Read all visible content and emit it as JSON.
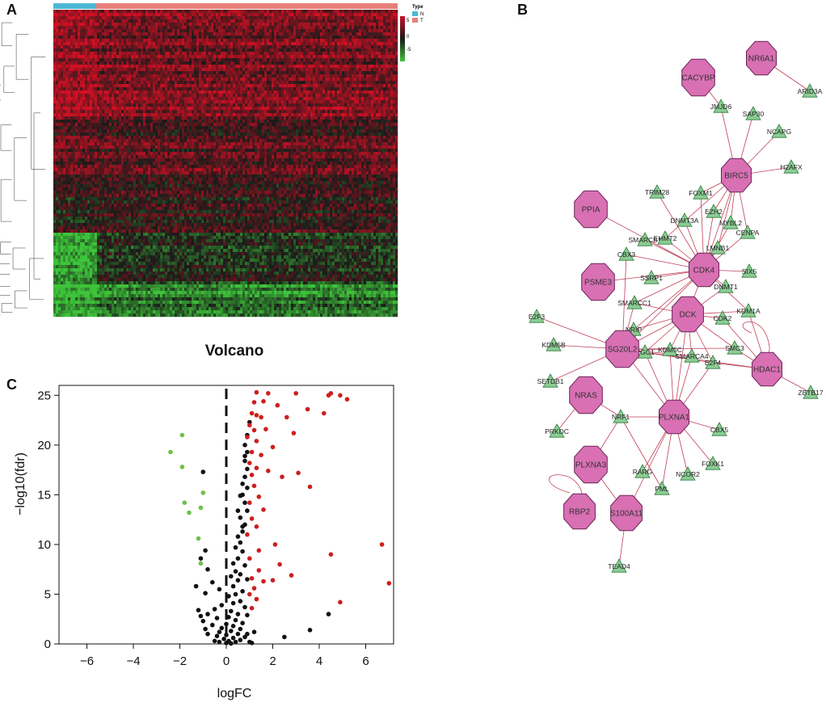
{
  "panels": {
    "a": "A",
    "b": "B",
    "c": "C"
  },
  "heatmap": {
    "legend_title": "Type",
    "legend_items": [
      {
        "label": "N",
        "color": "#4bb8d6"
      },
      {
        "label": "T",
        "color": "#e8807a"
      }
    ],
    "scale_labels": [
      "5",
      "0",
      "-5"
    ],
    "colors": {
      "high": "#c8102e",
      "mid": "#1a1a1a",
      "low": "#3ec43a"
    }
  },
  "volcano": {
    "title": "Volcano",
    "xlabel": "logFC",
    "ylabel": "−log10(fdr)"
  },
  "chart_data": {
    "type": "scatter",
    "title": "Volcano",
    "xlabel": "logFC",
    "ylabel": "−log10(fdr)",
    "xlim": [
      -7.2,
      7.2
    ],
    "ylim": [
      0,
      26
    ],
    "xticks": [
      -6,
      -4,
      -2,
      0,
      2,
      4,
      6
    ],
    "yticks": [
      0,
      5,
      10,
      15,
      20,
      25
    ],
    "x_tick_labels": [
      "−6",
      "−4",
      "−2",
      "0",
      "2",
      "4",
      "6"
    ],
    "y_tick_labels": [
      "0",
      "5",
      "10",
      "15",
      "20",
      "25"
    ],
    "threshold_x": 0,
    "series": [
      {
        "name": "up",
        "color": "#cc1f1f",
        "points": [
          [
            1.3,
            25.3
          ],
          [
            1.8,
            25.2
          ],
          [
            3.0,
            25.2
          ],
          [
            4.4,
            25.0
          ],
          [
            4.5,
            25.2
          ],
          [
            4.9,
            25.0
          ],
          [
            5.2,
            24.6
          ],
          [
            1.2,
            24.3
          ],
          [
            1.6,
            24.4
          ],
          [
            2.2,
            24.0
          ],
          [
            3.5,
            23.6
          ],
          [
            4.2,
            23.2
          ],
          [
            1.1,
            23.2
          ],
          [
            1.3,
            23.0
          ],
          [
            1.5,
            22.8
          ],
          [
            2.6,
            22.8
          ],
          [
            1.0,
            22.0
          ],
          [
            1.2,
            21.5
          ],
          [
            1.7,
            21.6
          ],
          [
            2.9,
            21.2
          ],
          [
            0.9,
            20.8
          ],
          [
            1.3,
            20.4
          ],
          [
            2.0,
            19.8
          ],
          [
            1.1,
            19.3
          ],
          [
            1.5,
            19.0
          ],
          [
            1.0,
            18.2
          ],
          [
            1.3,
            17.7
          ],
          [
            1.8,
            17.4
          ],
          [
            1.1,
            17.0
          ],
          [
            2.4,
            16.8
          ],
          [
            3.1,
            17.2
          ],
          [
            3.6,
            15.8
          ],
          [
            1.2,
            15.9
          ],
          [
            1.4,
            14.8
          ],
          [
            1.0,
            14.2
          ],
          [
            1.6,
            13.5
          ],
          [
            1.1,
            12.6
          ],
          [
            1.3,
            11.8
          ],
          [
            0.9,
            11.0
          ],
          [
            6.7,
            10.0
          ],
          [
            2.1,
            10.0
          ],
          [
            1.4,
            9.4
          ],
          [
            4.5,
            9.0
          ],
          [
            1.0,
            8.6
          ],
          [
            2.3,
            8.0
          ],
          [
            1.4,
            7.4
          ],
          [
            2.8,
            6.9
          ],
          [
            1.1,
            6.6
          ],
          [
            1.6,
            6.3
          ],
          [
            2.0,
            6.4
          ],
          [
            1.2,
            5.6
          ],
          [
            1.0,
            5.0
          ],
          [
            1.3,
            4.5
          ],
          [
            4.9,
            4.2
          ],
          [
            7.0,
            6.1
          ],
          [
            1.1,
            3.6
          ]
        ]
      },
      {
        "name": "down",
        "color": "#6fc04a",
        "points": [
          [
            -1.9,
            21.0
          ],
          [
            -2.4,
            19.3
          ],
          [
            -1.9,
            17.8
          ],
          [
            -1.0,
            15.2
          ],
          [
            -1.8,
            14.2
          ],
          [
            -1.1,
            13.7
          ],
          [
            -1.6,
            13.2
          ],
          [
            -1.2,
            10.6
          ],
          [
            -1.1,
            8.1
          ]
        ]
      },
      {
        "name": "not_significant",
        "color": "#111111",
        "points": [
          [
            1.0,
            22.3
          ],
          [
            0.9,
            21.0
          ],
          [
            0.8,
            20.0
          ],
          [
            0.9,
            19.3
          ],
          [
            0.8,
            18.4
          ],
          [
            0.9,
            17.6
          ],
          [
            -1.0,
            17.3
          ],
          [
            0.8,
            16.8
          ],
          [
            0.9,
            15.7
          ],
          [
            0.7,
            15.0
          ],
          [
            0.8,
            14.2
          ],
          [
            0.9,
            13.4
          ],
          [
            0.6,
            12.7
          ],
          [
            0.8,
            12.0
          ],
          [
            0.7,
            11.3
          ],
          [
            0.5,
            10.8
          ],
          [
            0.6,
            10.2
          ],
          [
            0.4,
            9.7
          ],
          [
            0.7,
            9.3
          ],
          [
            -0.9,
            9.4
          ],
          [
            -1.1,
            8.6
          ],
          [
            0.5,
            8.6
          ],
          [
            0.3,
            8.1
          ],
          [
            0.8,
            7.9
          ],
          [
            -0.8,
            7.5
          ],
          [
            0.4,
            7.3
          ],
          [
            0.6,
            7.0
          ],
          [
            0.2,
            6.8
          ],
          [
            -0.6,
            6.2
          ],
          [
            0.5,
            6.4
          ],
          [
            0.9,
            6.5
          ],
          [
            0.3,
            5.8
          ],
          [
            -0.3,
            5.5
          ],
          [
            0.7,
            5.3
          ],
          [
            0.4,
            5.0
          ],
          [
            -0.9,
            5.1
          ],
          [
            -1.3,
            5.8
          ],
          [
            0.1,
            4.8
          ],
          [
            0.6,
            4.3
          ],
          [
            0.3,
            4.1
          ],
          [
            -0.2,
            3.9
          ],
          [
            0.8,
            3.7
          ],
          [
            -0.5,
            3.5
          ],
          [
            -1.2,
            3.4
          ],
          [
            0.2,
            3.3
          ],
          [
            0.5,
            3.0
          ],
          [
            -0.8,
            3.0
          ],
          [
            0.9,
            2.9
          ],
          [
            0.1,
            2.7
          ],
          [
            -0.4,
            2.6
          ],
          [
            0.4,
            2.4
          ],
          [
            -1.0,
            2.3
          ],
          [
            0.7,
            2.1
          ],
          [
            0.0,
            2.0
          ],
          [
            -0.6,
            1.9
          ],
          [
            0.3,
            1.8
          ],
          [
            -0.2,
            1.6
          ],
          [
            0.6,
            1.5
          ],
          [
            -0.9,
            1.5
          ],
          [
            -1.1,
            2.8
          ],
          [
            0.2,
            1.3
          ],
          [
            -0.3,
            1.2
          ],
          [
            0.5,
            1.0
          ],
          [
            0.9,
            1.0
          ],
          [
            0.0,
            0.9
          ],
          [
            -0.4,
            0.8
          ],
          [
            0.3,
            0.6
          ],
          [
            -0.1,
            0.5
          ],
          [
            0.6,
            0.4
          ],
          [
            0.1,
            0.3
          ],
          [
            -0.5,
            0.3
          ],
          [
            0.4,
            0.2
          ],
          [
            1.0,
            0.2
          ],
          [
            -0.3,
            0.2
          ],
          [
            0.0,
            0.1
          ],
          [
            0.2,
            0.05
          ],
          [
            1.1,
            0.1
          ],
          [
            2.5,
            0.7
          ],
          [
            3.6,
            1.4
          ],
          [
            4.4,
            3.0
          ],
          [
            1.2,
            1.2
          ],
          [
            0.8,
            0.7
          ],
          [
            -0.8,
            1.0
          ],
          [
            0.7,
            11.8
          ],
          [
            0.5,
            13.4
          ],
          [
            0.6,
            14.9
          ],
          [
            0.7,
            16.1
          ],
          [
            0.8,
            18.9
          ]
        ]
      }
    ]
  },
  "network": {
    "hubs": [
      {
        "id": "NR6A1",
        "label": "NR6A1"
      },
      {
        "id": "CACYBP",
        "label": "CACYBP"
      },
      {
        "id": "BIRC5",
        "label": "BIRC5"
      },
      {
        "id": "PPIA",
        "label": "PPIA"
      },
      {
        "id": "CDK4",
        "label": "CDK4"
      },
      {
        "id": "PSME3",
        "label": "PSME3"
      },
      {
        "id": "DCK",
        "label": "DCK"
      },
      {
        "id": "SG20L2",
        "label": "SG20L2"
      },
      {
        "id": "HDAC1",
        "label": "HDAC1"
      },
      {
        "id": "NRAS",
        "label": "NRAS"
      },
      {
        "id": "PLXNA1",
        "label": "PLXNA1"
      },
      {
        "id": "PLXNA3",
        "label": "PLXNA3"
      },
      {
        "id": "RBP2",
        "label": "RBP2"
      },
      {
        "id": "S100A11",
        "label": "S100A11"
      }
    ],
    "genes": [
      {
        "id": "ARID3A",
        "label": "ARID3A"
      },
      {
        "id": "JMJD6",
        "label": "JMJD6"
      },
      {
        "id": "SAP30",
        "label": "SAP30"
      },
      {
        "id": "NCAPG",
        "label": "NCAPG"
      },
      {
        "id": "H2AFX",
        "label": "H2AFX"
      },
      {
        "id": "TRIM28",
        "label": "TRIM28"
      },
      {
        "id": "FOXM1",
        "label": "FOXM1"
      },
      {
        "id": "EZH2",
        "label": "EZH2"
      },
      {
        "id": "DNMT3A",
        "label": "DNMT3A"
      },
      {
        "id": "MYBL2",
        "label": "MYBL2"
      },
      {
        "id": "SMARCB1",
        "label": "SMARCB1"
      },
      {
        "id": "EHMT2",
        "label": "EHMT2"
      },
      {
        "id": "CENPA",
        "label": "CENPA"
      },
      {
        "id": "LMNB1",
        "label": "LMNB1"
      },
      {
        "id": "CBX3",
        "label": "CBX3"
      },
      {
        "id": "SIX5",
        "label": "SIX5"
      },
      {
        "id": "SSRP1",
        "label": "SSRP1"
      },
      {
        "id": "DNMT1",
        "label": "DNMT1"
      },
      {
        "id": "SMARCC1",
        "label": "SMARCC1"
      },
      {
        "id": "E2F3",
        "label": "E2F3"
      },
      {
        "id": "CDK2",
        "label": "CDK2"
      },
      {
        "id": "KDM1A",
        "label": "KDM1A"
      },
      {
        "id": "NRIP",
        "label": "NRIP"
      },
      {
        "id": "KDM5B",
        "label": "KDM5B"
      },
      {
        "id": "PGC1",
        "label": "PGC1"
      },
      {
        "id": "KDM5C",
        "label": "KDM5C"
      },
      {
        "id": "SMARCA4",
        "label": "SMARCA4"
      },
      {
        "id": "SMC3",
        "label": "SMC3"
      },
      {
        "id": "E2F4",
        "label": "E2F4"
      },
      {
        "id": "SETDB1",
        "label": "SETDB1"
      },
      {
        "id": "ZBTB17",
        "label": "ZBTB17"
      },
      {
        "id": "NRF1",
        "label": "NRF1"
      },
      {
        "id": "PRKDC",
        "label": "PRKDC"
      },
      {
        "id": "CBX5",
        "label": "CBX5"
      },
      {
        "id": "RARG",
        "label": "RARG"
      },
      {
        "id": "NCOR2",
        "label": "NCOR2"
      },
      {
        "id": "FOXK1",
        "label": "FOXK1"
      },
      {
        "id": "PML",
        "label": "PML"
      },
      {
        "id": "TEAD4",
        "label": "TEAD4"
      }
    ],
    "edges": [
      [
        "NR6A1",
        "ARID3A"
      ],
      [
        "CACYBP",
        "JMJD6"
      ],
      [
        "BIRC5",
        "JMJD6"
      ],
      [
        "BIRC5",
        "SAP30"
      ],
      [
        "BIRC5",
        "NCAPG"
      ],
      [
        "BIRC5",
        "H2AFX"
      ],
      [
        "BIRC5",
        "FOXM1"
      ],
      [
        "BIRC5",
        "EZH2"
      ],
      [
        "BIRC5",
        "MYBL2"
      ],
      [
        "BIRC5",
        "CENPA"
      ],
      [
        "BIRC5",
        "LMNB1"
      ],
      [
        "BIRC5",
        "CDK4"
      ],
      [
        "BIRC5",
        "EHMT2"
      ],
      [
        "CDK4",
        "TRIM28"
      ],
      [
        "CDK4",
        "FOXM1"
      ],
      [
        "CDK4",
        "EZH2"
      ],
      [
        "CDK4",
        "DNMT3A"
      ],
      [
        "CDK4",
        "MYBL2"
      ],
      [
        "CDK4",
        "SMARCB1"
      ],
      [
        "CDK4",
        "EHMT2"
      ],
      [
        "CDK4",
        "CENPA"
      ],
      [
        "CDK4",
        "LMNB1"
      ],
      [
        "CDK4",
        "CBX3"
      ],
      [
        "CDK4",
        "SIX5"
      ],
      [
        "CDK4",
        "SSRP1"
      ],
      [
        "CDK4",
        "DNMT1"
      ],
      [
        "CDK4",
        "SMARCC1"
      ],
      [
        "CDK4",
        "DCK"
      ],
      [
        "CDK4",
        "SG20L2"
      ],
      [
        "CDK4",
        "PSME3"
      ],
      [
        "CDK4",
        "PPIA"
      ],
      [
        "CDK4",
        "KDM1A"
      ],
      [
        "CDK4",
        "NRIP"
      ],
      [
        "DCK",
        "CDK2"
      ],
      [
        "DCK",
        "KDM1A"
      ],
      [
        "DCK",
        "SG20L2"
      ],
      [
        "DCK",
        "NRIP"
      ],
      [
        "DCK",
        "PGC1"
      ],
      [
        "DCK",
        "KDM5C"
      ],
      [
        "DCK",
        "SMARCA4"
      ],
      [
        "DCK",
        "SMC3"
      ],
      [
        "DCK",
        "E2F4"
      ],
      [
        "DCK",
        "PLXNA1"
      ],
      [
        "DCK",
        "DNMT1"
      ],
      [
        "DCK",
        "SMARCC1"
      ],
      [
        "SG20L2",
        "E2F3"
      ],
      [
        "SG20L2",
        "KDM5B"
      ],
      [
        "SG20L2",
        "NRIP"
      ],
      [
        "SG20L2",
        "PGC1"
      ],
      [
        "SG20L2",
        "KDM5C"
      ],
      [
        "SG20L2",
        "SMARCA4"
      ],
      [
        "SG20L2",
        "SMC3"
      ],
      [
        "SG20L2",
        "E2F4"
      ],
      [
        "SG20L2",
        "SETDB1"
      ],
      [
        "SG20L2",
        "HDAC1"
      ],
      [
        "SG20L2",
        "SMARCC1"
      ],
      [
        "SG20L2",
        "CBX3"
      ],
      [
        "SG20L2",
        "PLXNA1"
      ],
      [
        "HDAC1",
        "ZBTB17"
      ],
      [
        "HDAC1",
        "E2F4"
      ],
      [
        "HDAC1",
        "SMC3"
      ],
      [
        "HDAC1",
        "KDM1A"
      ],
      [
        "HDAC1",
        "CDK2"
      ],
      [
        "NRAS",
        "PRKDC"
      ],
      [
        "PLXNA1",
        "NRF1"
      ],
      [
        "PLXNA1",
        "CBX5"
      ],
      [
        "PLXNA1",
        "RARG"
      ],
      [
        "PLXNA1",
        "NCOR2"
      ],
      [
        "PLXNA1",
        "FOXK1"
      ],
      [
        "PLXNA1",
        "PML"
      ],
      [
        "PLXNA1",
        "SMARCA4"
      ],
      [
        "PLXNA1",
        "KDM5C"
      ],
      [
        "PLXNA1",
        "E2F4"
      ],
      [
        "PLXNA1",
        "S100A11"
      ],
      [
        "PLXNA1",
        "PGC1"
      ],
      [
        "NRF1",
        "PML"
      ],
      [
        "NRF1",
        "NRAS"
      ],
      [
        "S100A11",
        "TEAD4"
      ],
      [
        "S100A11",
        "PLXNA3"
      ],
      [
        "PLXNA3",
        "NRF1"
      ]
    ]
  }
}
